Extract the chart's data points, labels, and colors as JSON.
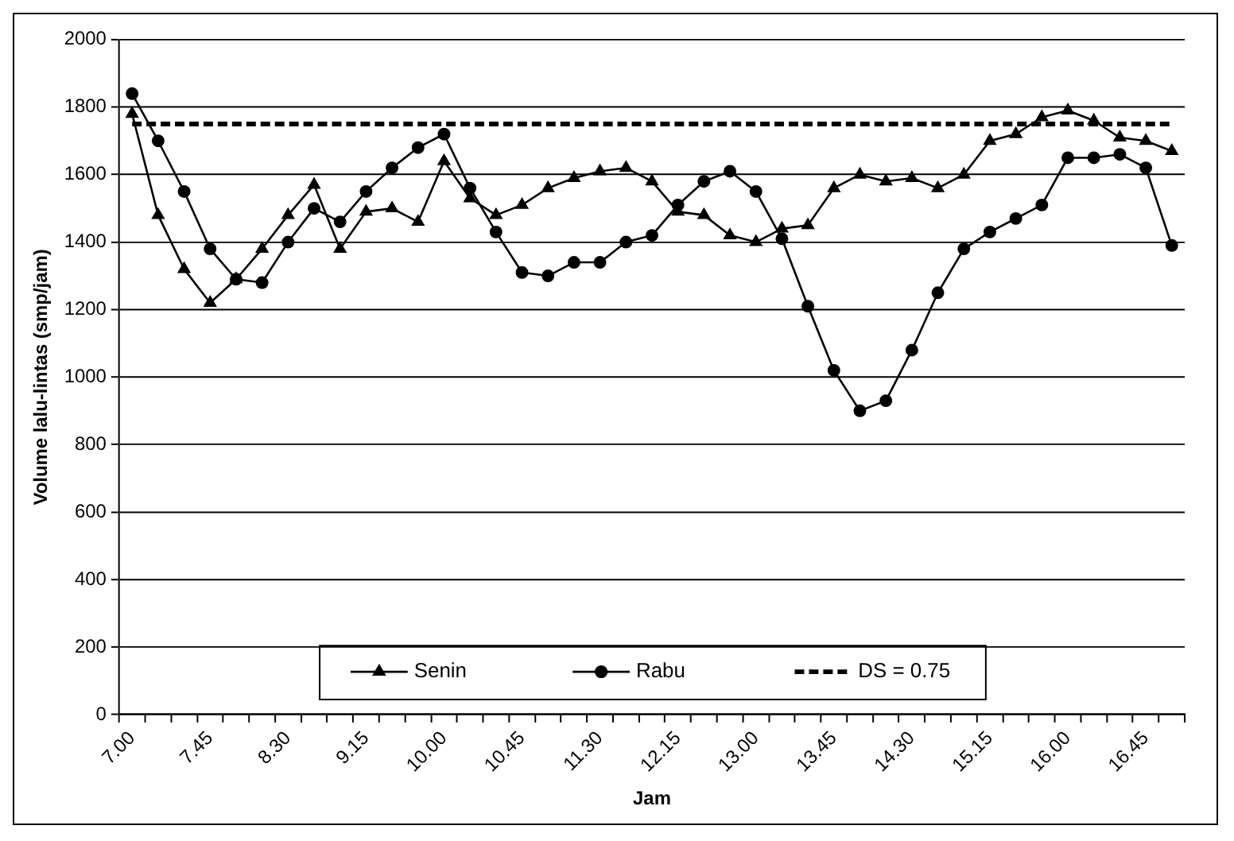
{
  "chart_data": {
    "type": "line",
    "xlabel": "Jam",
    "ylabel": "Volume lalu-lintas (smp/jam)",
    "categories": [
      "7.00",
      null,
      null,
      "7.45",
      null,
      null,
      "8.30",
      null,
      null,
      "9.15",
      null,
      null,
      "10.00",
      null,
      null,
      "10.45",
      null,
      null,
      "11.30",
      null,
      null,
      "12.15",
      null,
      null,
      "13.00",
      null,
      null,
      "13.45",
      null,
      null,
      "14.30",
      null,
      null,
      "15.15",
      null,
      null,
      "16.00",
      null,
      null,
      "16.45",
      null
    ],
    "series": [
      {
        "name": "Senin",
        "color": "#000000",
        "marker": "triangle",
        "line_style": "solid",
        "values": [
          1780,
          1480,
          1320,
          1220,
          1290,
          1380,
          1480,
          1570,
          1380,
          1490,
          1500,
          1460,
          1640,
          1530,
          1480,
          1510,
          1560,
          1590,
          1610,
          1620,
          1580,
          1490,
          1480,
          1420,
          1400,
          1440,
          1450,
          1560,
          1600,
          1580,
          1590,
          1560,
          1600,
          1700,
          1720,
          1770,
          1790,
          1760,
          1710,
          1700,
          1670
        ]
      },
      {
        "name": "Rabu",
        "color": "#000000",
        "marker": "circle",
        "line_style": "solid",
        "values": [
          1840,
          1700,
          1550,
          1380,
          1290,
          1280,
          1400,
          1500,
          1460,
          1550,
          1620,
          1680,
          1720,
          1560,
          1430,
          1310,
          1300,
          1340,
          1340,
          1400,
          1420,
          1510,
          1580,
          1610,
          1550,
          1410,
          1210,
          1020,
          900,
          930,
          1080,
          1250,
          1380,
          1430,
          1470,
          1510,
          1650,
          1650,
          1660,
          1620,
          1390
        ]
      },
      {
        "name": "DS = 0.75",
        "color": "#000000",
        "marker": "none",
        "line_style": "dashed",
        "values": [
          1750,
          1750,
          1750,
          1750,
          1750,
          1750,
          1750,
          1750,
          1750,
          1750,
          1750,
          1750,
          1750,
          1750,
          1750,
          1750,
          1750,
          1750,
          1750,
          1750,
          1750,
          1750,
          1750,
          1750,
          1750,
          1750,
          1750,
          1750,
          1750,
          1750,
          1750,
          1750,
          1750,
          1750,
          1750,
          1750,
          1750,
          1750,
          1750,
          1750,
          1750
        ]
      }
    ],
    "ylim": [
      0,
      2000
    ],
    "yticks": [
      0,
      200,
      400,
      600,
      800,
      1000,
      1200,
      1400,
      1600,
      1800,
      2000
    ],
    "grid": "y",
    "legend": "bottom"
  }
}
